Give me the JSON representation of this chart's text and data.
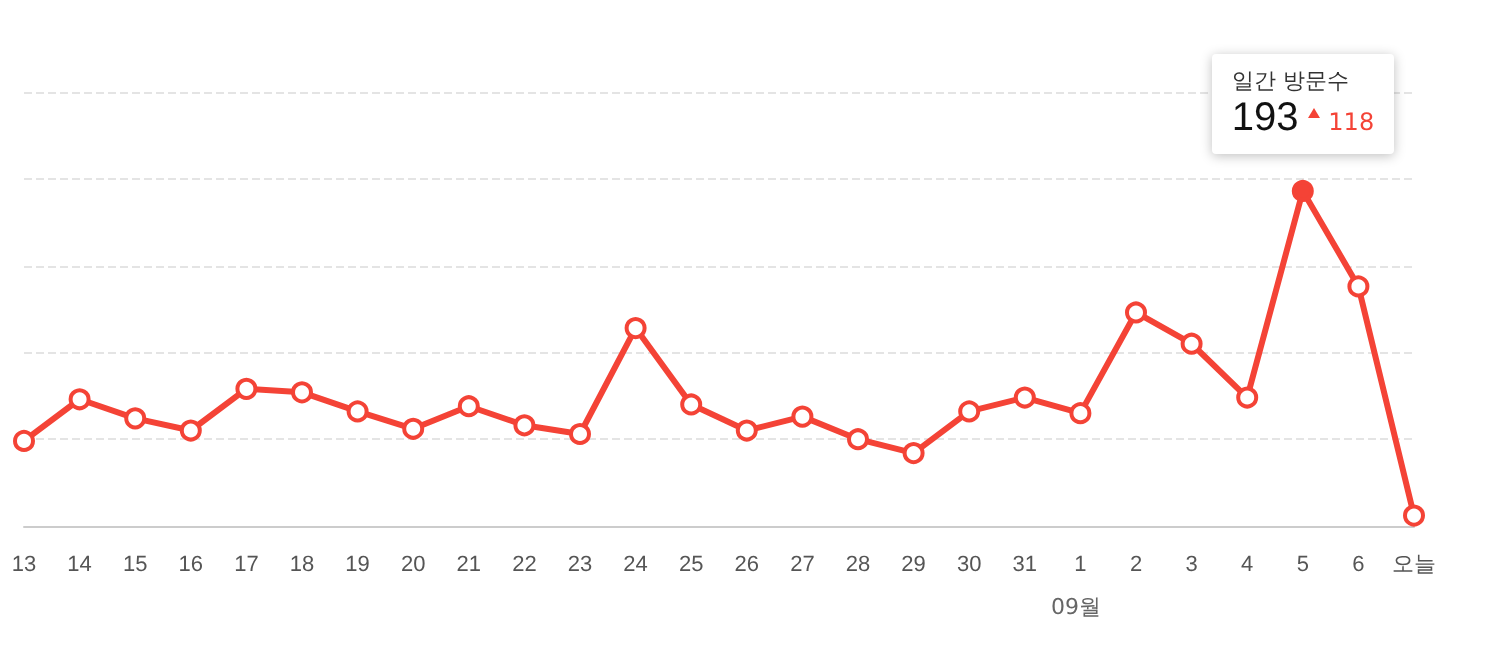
{
  "chart_data": {
    "type": "line",
    "categories": [
      "13",
      "14",
      "15",
      "16",
      "17",
      "18",
      "19",
      "20",
      "21",
      "22",
      "23",
      "24",
      "25",
      "26",
      "27",
      "28",
      "29",
      "30",
      "31",
      "1",
      "2",
      "3",
      "4",
      "5",
      "6",
      "오늘"
    ],
    "series": [
      {
        "color": "#f44336",
        "values": [
          49,
          73,
          62,
          55,
          79,
          77,
          66,
          56,
          69,
          58,
          53,
          114,
          70,
          55,
          63,
          50,
          42,
          66,
          74,
          65,
          123,
          105,
          74,
          193,
          138,
          6
        ],
        "value_labels": [
          null,
          null,
          null,
          null,
          null,
          null,
          null,
          null,
          null,
          null,
          null,
          null,
          null,
          null,
          null,
          null,
          null,
          null,
          null,
          null,
          null,
          null,
          null,
          "193",
          null,
          null
        ]
      }
    ],
    "ylim": [
      0,
      250
    ],
    "yticks": [
      {
        "value": 0,
        "label": null
      },
      {
        "value": 50,
        "label": null
      },
      {
        "value": 100,
        "label": null
      },
      {
        "value": 150,
        "label": null
      },
      {
        "value": 200,
        "label": null
      },
      {
        "value": 250,
        "label": null
      }
    ],
    "grid": "y",
    "marker": "circle",
    "line_style": "solid",
    "annotations": [
      "일간 방문수",
      "118",
      "09월"
    ]
  }
}
